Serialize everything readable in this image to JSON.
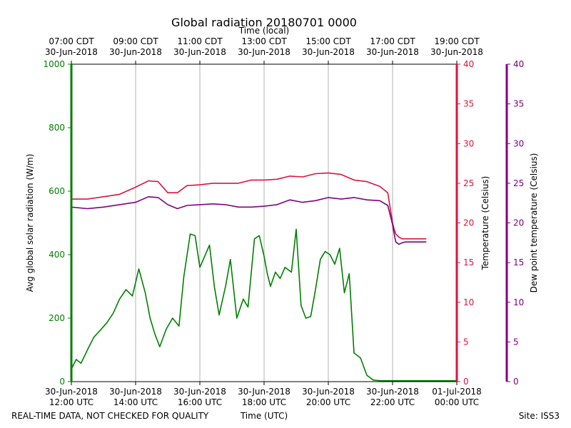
{
  "chart_data": {
    "type": "line",
    "title": "Global radiation 20180701 0000",
    "top_axis_label": "Time (local)",
    "top_ticks": [
      {
        "line1": "07:00 CDT",
        "line2": "30-Jun-2018"
      },
      {
        "line1": "09:00 CDT",
        "line2": "30-Jun-2018"
      },
      {
        "line1": "11:00 CDT",
        "line2": "30-Jun-2018"
      },
      {
        "line1": "13:00 CDT",
        "line2": "30-Jun-2018"
      },
      {
        "line1": "15:00 CDT",
        "line2": "30-Jun-2018"
      },
      {
        "line1": "17:00 CDT",
        "line2": "30-Jun-2018"
      },
      {
        "line1": "19:00 CDT",
        "line2": "30-Jun-2018"
      }
    ],
    "xlabel": "Time (UTC)",
    "x_ticks": [
      {
        "line1": "30-Jun-2018",
        "line2": "12:00 UTC"
      },
      {
        "line1": "30-Jun-2018",
        "line2": "14:00 UTC"
      },
      {
        "line1": "30-Jun-2018",
        "line2": "16:00 UTC"
      },
      {
        "line1": "30-Jun-2018",
        "line2": "18:00 UTC"
      },
      {
        "line1": "30-Jun-2018",
        "line2": "20:00 UTC"
      },
      {
        "line1": "30-Jun-2018",
        "line2": "22:00 UTC"
      },
      {
        "line1": "01-Jul-2018",
        "line2": "00:00 UTC"
      }
    ],
    "x_unit": "hours since 30-Jun-2018 12:00 UTC",
    "xlim": [
      0,
      12
    ],
    "axes": [
      {
        "name": "Avg global solar radiation (W/m)",
        "color": "#008000",
        "ylim": [
          0,
          1000
        ],
        "ticks": [
          0,
          200,
          400,
          600,
          800,
          1000
        ]
      },
      {
        "name": "Temperature (Celsius)",
        "color": "#dc143c",
        "ylim": [
          0,
          40
        ],
        "ticks": [
          0,
          5,
          10,
          15,
          20,
          25,
          30,
          35,
          40
        ]
      },
      {
        "name": "Dew point temperature (Celsius)",
        "color": "#800080",
        "ylim": [
          0,
          40
        ],
        "ticks": [
          0,
          5,
          10,
          15,
          20,
          25,
          30,
          35,
          40
        ]
      }
    ],
    "series": [
      {
        "name": "Avg global solar radiation",
        "axis": 0,
        "color": "#008000",
        "x": [
          0,
          0.15,
          0.3,
          0.5,
          0.7,
          0.9,
          1.1,
          1.3,
          1.5,
          1.7,
          1.9,
          2.1,
          2.3,
          2.45,
          2.6,
          2.75,
          2.95,
          3.15,
          3.35,
          3.5,
          3.7,
          3.85,
          4.0,
          4.15,
          4.3,
          4.45,
          4.6,
          4.8,
          4.95,
          5.15,
          5.35,
          5.5,
          5.7,
          5.85,
          6.0,
          6.1,
          6.2,
          6.35,
          6.5,
          6.65,
          6.85,
          7.0,
          7.15,
          7.3,
          7.45,
          7.6,
          7.75,
          7.9,
          8.05,
          8.2,
          8.35,
          8.5,
          8.65,
          8.8,
          9.0,
          9.2,
          9.4,
          9.6,
          9.75,
          9.9,
          10.0,
          10.15,
          10.3,
          10.45,
          10.6,
          10.75,
          10.9,
          11.1,
          11.3,
          11.5,
          11.7,
          12.0
        ],
        "values": [
          40,
          70,
          58,
          100,
          140,
          162,
          185,
          215,
          260,
          290,
          270,
          355,
          280,
          200,
          150,
          110,
          165,
          200,
          175,
          330,
          465,
          460,
          360,
          395,
          430,
          300,
          210,
          300,
          385,
          200,
          260,
          235,
          450,
          460,
          395,
          340,
          300,
          345,
          325,
          360,
          345,
          480,
          240,
          200,
          205,
          290,
          385,
          410,
          400,
          370,
          420,
          280,
          340,
          90,
          75,
          20,
          5,
          3,
          3,
          3,
          3,
          3,
          3,
          3,
          3,
          3,
          3,
          3,
          3,
          3,
          3,
          3
        ]
      },
      {
        "name": "Temperature",
        "axis": 1,
        "color": "#dc143c",
        "x": [
          0,
          0.5,
          1.0,
          1.5,
          2.0,
          2.4,
          2.7,
          3.0,
          3.3,
          3.6,
          4.0,
          4.4,
          4.8,
          5.2,
          5.6,
          6.0,
          6.4,
          6.8,
          7.2,
          7.6,
          8.0,
          8.4,
          8.8,
          9.2,
          9.6,
          9.85,
          10.0,
          10.05,
          10.1,
          10.2,
          10.3,
          10.4,
          10.5,
          10.6,
          10.7,
          10.8,
          10.9,
          11.0,
          11.05
        ],
        "values": [
          23.0,
          23.0,
          23.3,
          23.6,
          24.5,
          25.3,
          25.2,
          23.8,
          23.8,
          24.7,
          24.8,
          25.0,
          25.0,
          25.0,
          25.4,
          25.4,
          25.5,
          25.9,
          25.8,
          26.2,
          26.3,
          26.1,
          25.4,
          25.2,
          24.6,
          23.8,
          20.0,
          19.2,
          18.6,
          18.2,
          18.0,
          18.0,
          18.0,
          18.0,
          18.0,
          18.0,
          18.0,
          18.0,
          18.0
        ]
      },
      {
        "name": "Dew point temperature",
        "axis": 2,
        "color": "#800080",
        "x": [
          0,
          0.5,
          1.0,
          1.5,
          2.0,
          2.4,
          2.7,
          3.0,
          3.3,
          3.6,
          4.0,
          4.4,
          4.8,
          5.2,
          5.6,
          6.0,
          6.4,
          6.8,
          7.2,
          7.6,
          8.0,
          8.4,
          8.8,
          9.2,
          9.6,
          9.85,
          10.0,
          10.05,
          10.1,
          10.2,
          10.3,
          10.4,
          10.5,
          10.6,
          10.7,
          10.8,
          10.9,
          11.0,
          11.05
        ],
        "values": [
          22.0,
          21.8,
          22.0,
          22.3,
          22.6,
          23.3,
          23.2,
          22.3,
          21.8,
          22.2,
          22.3,
          22.4,
          22.3,
          22.0,
          22.0,
          22.1,
          22.3,
          22.9,
          22.6,
          22.8,
          23.2,
          23.0,
          23.2,
          22.9,
          22.8,
          22.2,
          19.8,
          18.6,
          17.6,
          17.3,
          17.5,
          17.6,
          17.6,
          17.6,
          17.6,
          17.6,
          17.6,
          17.6,
          17.6
        ]
      }
    ]
  },
  "footer": {
    "left_note": "REAL-TIME DATA, NOT CHECKED FOR QUALITY",
    "site": "Site: ISS3"
  }
}
